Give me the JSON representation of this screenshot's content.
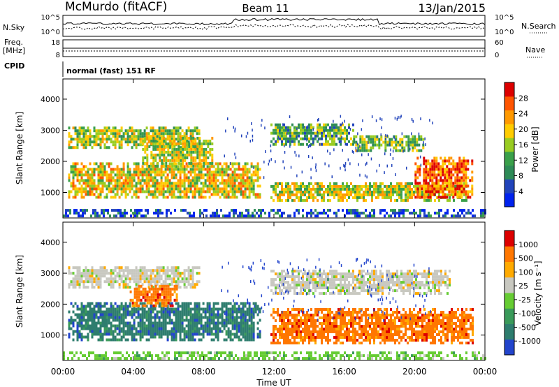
{
  "header": {
    "station": "McMurdo (fitACF)",
    "beam": "Beam 11",
    "date": "13/Jan/2015"
  },
  "aux_panels": {
    "nsky_label": "N.Sky",
    "nsky_ticks": [
      "10^5",
      "10^0"
    ],
    "nsearch_label": "N.Search",
    "nsearch_ticks": [
      "10^5",
      "10^0"
    ],
    "freq_label_1": "Freq.",
    "freq_label_2": "[MHz]",
    "freq_ticks": [
      "18",
      "8"
    ],
    "nave_label": "Nave",
    "nave_ticks": [
      "60",
      "0"
    ],
    "cpid_label": "CPID",
    "cpid_value": "normal (fast) 151 RF"
  },
  "chart_data": [
    {
      "type": "heatmap",
      "name": "power",
      "ylabel": "Slant Range [km]",
      "xlabel": "Time UT",
      "x_ticks": [
        "00:00",
        "04:00",
        "08:00",
        "12:00",
        "16:00",
        "20:00",
        "00:00"
      ],
      "x_range_hours": [
        0,
        24
      ],
      "y_ticks": [
        1000,
        2000,
        3000,
        4000
      ],
      "ylim": [
        180,
        4650
      ],
      "colorbar": {
        "label": "Power [dB]",
        "ticks": [
          "28",
          "24",
          "20",
          "16",
          "12",
          "8",
          "4"
        ],
        "colors": [
          "#0022ee",
          "#2244bb",
          "#2e8b57",
          "#3aa04a",
          "#99cc22",
          "#ffcc00",
          "#ff9900",
          "#ff5500",
          "#dd0000"
        ]
      },
      "bands": [
        {
          "t0": 0.3,
          "t1": 7.8,
          "r0": 2400,
          "r1": 3100,
          "level": 0.5
        },
        {
          "t0": 0.3,
          "t1": 11.2,
          "r0": 800,
          "r1": 1900,
          "level": 0.6
        },
        {
          "t0": 4.5,
          "t1": 8.5,
          "r0": 1800,
          "r1": 2700,
          "level": 0.55
        },
        {
          "t0": 11.8,
          "t1": 16.5,
          "r0": 2500,
          "r1": 3200,
          "level": 0.4
        },
        {
          "t0": 16.5,
          "t1": 20.5,
          "r0": 2300,
          "r1": 2800,
          "level": 0.45
        },
        {
          "t0": 11.8,
          "t1": 23.0,
          "r0": 700,
          "r1": 1300,
          "level": 0.55
        },
        {
          "t0": 20.0,
          "t1": 23.3,
          "r0": 800,
          "r1": 2100,
          "level": 0.8
        },
        {
          "t0": 0.0,
          "t1": 24.0,
          "r0": 200,
          "r1": 450,
          "level": 0.15
        }
      ]
    },
    {
      "type": "heatmap",
      "name": "velocity",
      "ylabel": "Slant Range [km]",
      "xlabel": "Time UT",
      "x_ticks": [
        "00:00",
        "04:00",
        "08:00",
        "12:00",
        "16:00",
        "20:00",
        "00:00"
      ],
      "x_range_hours": [
        0,
        24
      ],
      "y_ticks": [
        1000,
        2000,
        3000,
        4000
      ],
      "ylim": [
        180,
        4650
      ],
      "colorbar": {
        "label": "Velocity [m s⁻¹]",
        "ticks": [
          "1000",
          "500",
          "100",
          "25",
          "-25",
          "-100",
          "-500",
          "-1000"
        ],
        "colors": [
          "#2244cc",
          "#2e7d6e",
          "#3a9a5a",
          "#66cc33",
          "#c8c8c0",
          "#ffaa00",
          "#ff7700",
          "#dd0000"
        ]
      },
      "bands": [
        {
          "t0": 0.3,
          "t1": 7.8,
          "r0": 2500,
          "r1": 3200,
          "cls": 4
        },
        {
          "t0": 0.3,
          "t1": 11.2,
          "r0": 800,
          "r1": 2000,
          "cls": 1
        },
        {
          "t0": 3.8,
          "t1": 6.5,
          "r0": 1900,
          "r1": 2600,
          "cls": 6
        },
        {
          "t0": 11.8,
          "t1": 22.0,
          "r0": 2300,
          "r1": 3100,
          "cls": 4
        },
        {
          "t0": 11.8,
          "t1": 23.3,
          "r0": 700,
          "r1": 1800,
          "cls": 6
        },
        {
          "t0": 0.0,
          "t1": 24.0,
          "r0": 200,
          "r1": 450,
          "cls": 3
        }
      ]
    }
  ]
}
